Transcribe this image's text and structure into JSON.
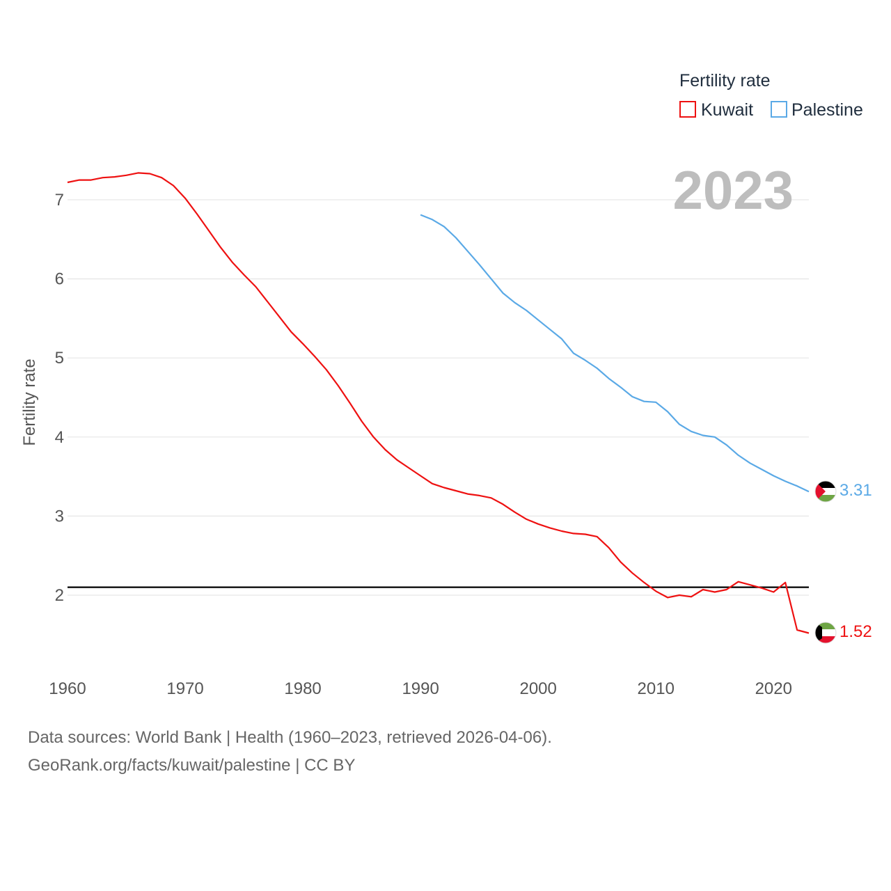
{
  "chart_data": {
    "type": "line",
    "title": "",
    "year_label": "2023",
    "xlabel": "",
    "ylabel": "Fertility rate",
    "xlim": [
      1960,
      2023
    ],
    "ylim": [
      1.0,
      7.6
    ],
    "x_ticks": [
      "1960",
      "1970",
      "1980",
      "1990",
      "2000",
      "2010",
      "2020"
    ],
    "y_ticks": [
      "2",
      "3",
      "4",
      "5",
      "6",
      "7"
    ],
    "grid": true,
    "legend": {
      "title": "Fertility rate",
      "position": "top-right"
    },
    "reference_line": {
      "y": 2.1,
      "color": "#000000"
    },
    "series": [
      {
        "name": "Kuwait",
        "color": "#ee1111",
        "end_label": "1.52",
        "x": [
          1960,
          1961,
          1962,
          1963,
          1964,
          1965,
          1966,
          1967,
          1968,
          1969,
          1970,
          1971,
          1972,
          1973,
          1974,
          1975,
          1976,
          1977,
          1978,
          1979,
          1980,
          1981,
          1982,
          1983,
          1984,
          1985,
          1986,
          1987,
          1988,
          1989,
          1990,
          1991,
          1992,
          1993,
          1994,
          1995,
          1996,
          1997,
          1998,
          1999,
          2000,
          2001,
          2002,
          2003,
          2004,
          2005,
          2006,
          2007,
          2008,
          2009,
          2010,
          2011,
          2012,
          2013,
          2014,
          2015,
          2016,
          2017,
          2018,
          2019,
          2020,
          2021,
          2022,
          2023
        ],
        "values": [
          7.22,
          7.25,
          7.25,
          7.28,
          7.29,
          7.31,
          7.34,
          7.33,
          7.28,
          7.18,
          7.02,
          6.82,
          6.61,
          6.4,
          6.21,
          6.05,
          5.9,
          5.71,
          5.52,
          5.33,
          5.18,
          5.02,
          4.85,
          4.65,
          4.43,
          4.2,
          4.0,
          3.84,
          3.71,
          3.61,
          3.51,
          3.41,
          3.36,
          3.32,
          3.28,
          3.26,
          3.23,
          3.15,
          3.05,
          2.96,
          2.9,
          2.85,
          2.81,
          2.78,
          2.77,
          2.74,
          2.6,
          2.42,
          2.28,
          2.16,
          2.05,
          1.97,
          2.0,
          1.98,
          2.07,
          2.04,
          2.07,
          2.17,
          2.13,
          2.09,
          2.04,
          2.16,
          1.56,
          1.52
        ]
      },
      {
        "name": "Palestine",
        "color": "#5aa9e6",
        "end_label": "3.31",
        "x": [
          1990,
          1991,
          1992,
          1993,
          1994,
          1995,
          1996,
          1997,
          1998,
          1999,
          2000,
          2001,
          2002,
          2003,
          2004,
          2005,
          2006,
          2007,
          2008,
          2009,
          2010,
          2011,
          2012,
          2013,
          2014,
          2015,
          2016,
          2017,
          2018,
          2019,
          2020,
          2021,
          2022,
          2023
        ],
        "values": [
          6.81,
          6.75,
          6.66,
          6.52,
          6.35,
          6.18,
          6.0,
          5.82,
          5.7,
          5.6,
          5.48,
          5.36,
          5.24,
          5.06,
          4.97,
          4.87,
          4.74,
          4.63,
          4.51,
          4.45,
          4.44,
          4.32,
          4.16,
          4.07,
          4.02,
          4.0,
          3.9,
          3.77,
          3.67,
          3.59,
          3.51,
          3.44,
          3.38,
          3.31
        ]
      }
    ]
  },
  "footer": {
    "line1": "Data sources: World Bank | Health (1960–2023, retrieved 2026-04-06).",
    "line2": "GeoRank.org/facts/kuwait/palestine | CC BY"
  },
  "icons": {
    "kuwait": "kuwait-flag-icon",
    "palestine": "palestine-flag-icon"
  }
}
